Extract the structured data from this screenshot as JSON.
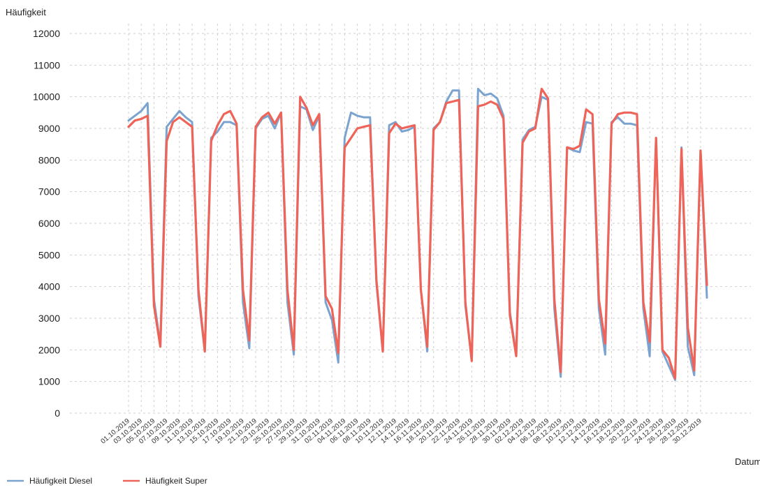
{
  "chart_data": {
    "type": "line",
    "ylabel": "Häufigkeit",
    "xlabel": "Datum",
    "ylim": [
      0,
      12000
    ],
    "yticks": [
      0,
      1000,
      2000,
      3000,
      4000,
      5000,
      6000,
      7000,
      8000,
      9000,
      10000,
      11000,
      12000
    ],
    "grid": true,
    "legend": "bottom-left",
    "x": [
      "01.10.2019",
      "02.10.2019",
      "03.10.2019",
      "04.10.2019",
      "05.10.2019",
      "06.10.2019",
      "07.10.2019",
      "08.10.2019",
      "09.10.2019",
      "10.10.2019",
      "11.10.2019",
      "12.10.2019",
      "13.10.2019",
      "14.10.2019",
      "15.10.2019",
      "16.10.2019",
      "17.10.2019",
      "18.10.2019",
      "19.10.2019",
      "20.10.2019",
      "21.10.2019",
      "22.10.2019",
      "23.10.2019",
      "24.10.2019",
      "25.10.2019",
      "26.10.2019",
      "27.10.2019",
      "28.10.2019",
      "29.10.2019",
      "30.10.2019",
      "31.10.2019",
      "01.11.2019",
      "02.11.2019",
      "03.11.2019",
      "04.11.2019",
      "05.11.2019",
      "06.11.2019",
      "07.11.2019",
      "08.11.2019",
      "09.11.2019",
      "10.11.2019",
      "11.11.2019",
      "12.11.2019",
      "13.11.2019",
      "14.11.2019",
      "15.11.2019",
      "16.11.2019",
      "17.11.2019",
      "18.11.2019",
      "19.11.2019",
      "20.11.2019",
      "21.11.2019",
      "22.11.2019",
      "23.11.2019",
      "24.11.2019",
      "25.11.2019",
      "26.11.2019",
      "27.11.2019",
      "28.11.2019",
      "29.11.2019",
      "30.11.2019",
      "01.12.2019",
      "02.12.2019",
      "03.12.2019",
      "04.12.2019",
      "05.12.2019",
      "06.12.2019",
      "07.12.2019",
      "08.12.2019",
      "09.12.2019",
      "10.12.2019",
      "11.12.2019",
      "12.12.2019",
      "13.12.2019",
      "14.12.2019",
      "15.12.2019",
      "16.12.2019",
      "17.12.2019",
      "18.12.2019",
      "19.12.2019",
      "20.12.2019",
      "21.12.2019",
      "22.12.2019",
      "23.12.2019",
      "24.12.2019",
      "25.12.2019",
      "26.12.2019",
      "27.12.2019",
      "28.12.2019",
      "29.12.2019",
      "30.12.2019",
      "31.12.2019"
    ],
    "xtick_labels": [
      "01.10.2019",
      "03.10.2019",
      "05.10.2019",
      "07.10.2019",
      "09.10.2019",
      "11.10.2019",
      "13.10.2019",
      "15.10.2019",
      "17.10.2019",
      "19.10.2019",
      "21.10.2019",
      "23.10.2019",
      "25.10.2019",
      "27.10.2019",
      "29.10.2019",
      "31.10.2019",
      "02.11.2019",
      "04.11.2019",
      "06.11.2019",
      "08.11.2019",
      "10.11.2019",
      "12.11.2019",
      "14.11.2019",
      "16.11.2019",
      "18.11.2019",
      "20.11.2019",
      "22.11.2019",
      "24.11.2019",
      "26.11.2019",
      "28.11.2019",
      "30.11.2019",
      "02.12.2019",
      "04.12.2019",
      "06.12.2019",
      "08.12.2019",
      "10.12.2019",
      "12.12.2019",
      "14.12.2019",
      "16.12.2019",
      "18.12.2019",
      "20.12.2019",
      "22.12.2019",
      "24.12.2019",
      "26.12.2019",
      "28.12.2019",
      "30.12.2019"
    ],
    "series": [
      {
        "name": "Häufigkeit Diesel",
        "color": "#7ba3d0",
        "values": [
          9250,
          9400,
          9550,
          9800,
          3600,
          2150,
          9050,
          9300,
          9550,
          9350,
          9200,
          3700,
          1950,
          8700,
          8900,
          9200,
          9200,
          9100,
          3500,
          2050,
          9000,
          9300,
          9400,
          9000,
          9500,
          3500,
          1850,
          9700,
          9600,
          8950,
          9400,
          3500,
          2950,
          1600,
          8700,
          9500,
          9400,
          9350,
          9350,
          4100,
          1950,
          9100,
          9200,
          8900,
          8950,
          9050,
          3900,
          1950,
          9000,
          9200,
          9850,
          10200,
          10200,
          3400,
          1700,
          10250,
          10050,
          10100,
          9950,
          9400,
          3200,
          1850,
          8650,
          8950,
          9050,
          10000,
          9900,
          3300,
          1150,
          8400,
          8300,
          8250,
          9200,
          9150,
          3300,
          1850,
          9200,
          9350,
          9150,
          9150,
          9100,
          3300,
          1800,
          8700,
          1950,
          1500,
          1050,
          8400,
          2100,
          1200,
          8300,
          3650
        ]
      },
      {
        "name": "Häufigkeit Super",
        "color": "#ef6459",
        "values": [
          9050,
          9250,
          9300,
          9400,
          3400,
          2100,
          8600,
          9200,
          9350,
          9200,
          9050,
          3900,
          1950,
          8600,
          9100,
          9450,
          9550,
          9150,
          3900,
          2300,
          9050,
          9350,
          9500,
          9150,
          9500,
          3900,
          2000,
          10000,
          9650,
          9100,
          9450,
          3700,
          3300,
          1900,
          8400,
          8700,
          9000,
          9050,
          9100,
          4200,
          1950,
          8850,
          9150,
          9000,
          9050,
          9100,
          3900,
          2100,
          8950,
          9200,
          9800,
          9850,
          9900,
          3500,
          1650,
          9700,
          9750,
          9850,
          9750,
          9300,
          3100,
          1800,
          8550,
          8900,
          9000,
          10250,
          9950,
          3600,
          1300,
          8400,
          8350,
          8450,
          9600,
          9450,
          3600,
          2200,
          9150,
          9450,
          9500,
          9500,
          9450,
          3500,
          2250,
          8700,
          2000,
          1750,
          1100,
          8350,
          2700,
          1350,
          8300,
          4050
        ]
      }
    ]
  }
}
